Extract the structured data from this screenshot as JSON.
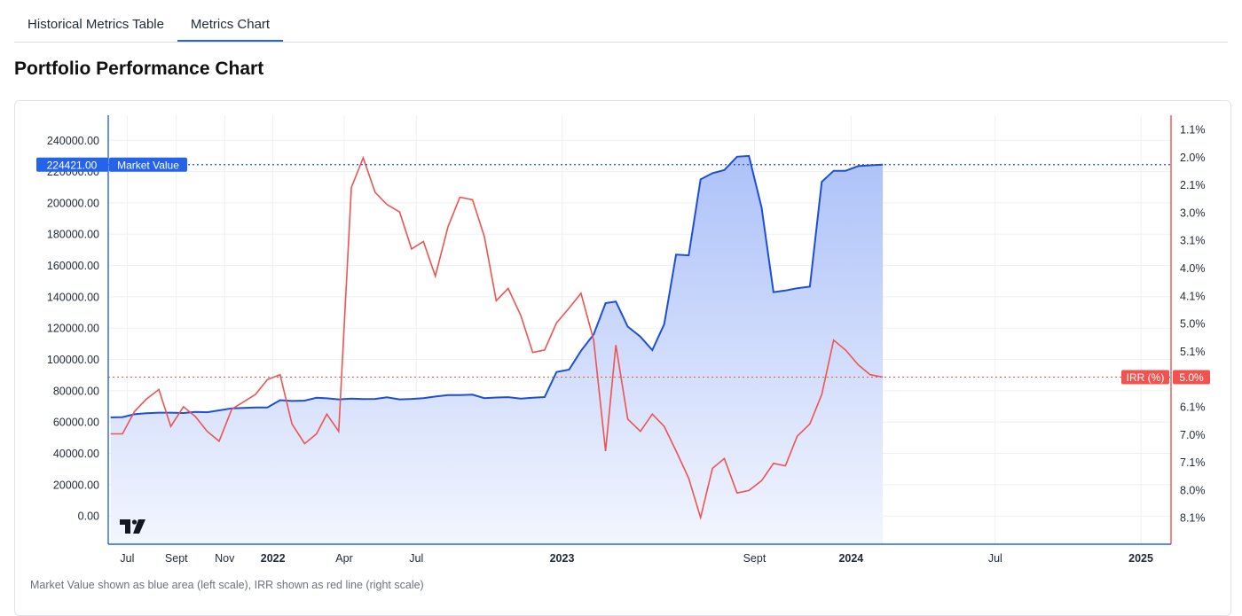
{
  "tabs": [
    {
      "label": "Historical Metrics Table",
      "active": false
    },
    {
      "label": "Metrics Chart",
      "active": true
    }
  ],
  "page_title": "Portfolio Performance Chart",
  "caption": "Market Value shown as blue area (left scale), IRR shown as red line (right scale)",
  "colors": {
    "market_value": "#1d4ed8",
    "irr": "#ef5350",
    "area_top": "#a9bff8",
    "area_bottom": "#f3f6fe",
    "grid": "#eef0f3",
    "left_axis": "#2563eb",
    "right_axis": "#ef5350"
  },
  "chart_data": {
    "type": "area",
    "x_tick_labels": [
      {
        "label": "Jul",
        "date": "2021-07-01",
        "bold": false
      },
      {
        "label": "Sept",
        "date": "2021-09-01",
        "bold": false
      },
      {
        "label": "Nov",
        "date": "2021-11-01",
        "bold": false
      },
      {
        "label": "2022",
        "date": "2022-01-01",
        "bold": true
      },
      {
        "label": "Apr",
        "date": "2022-04-01",
        "bold": false
      },
      {
        "label": "Jul",
        "date": "2022-07-01",
        "bold": false
      },
      {
        "label": "2023",
        "date": "2023-01-01",
        "bold": true
      },
      {
        "label": "Sept",
        "date": "2023-09-01",
        "bold": false
      },
      {
        "label": "2024",
        "date": "2024-01-01",
        "bold": true
      },
      {
        "label": "Jul",
        "date": "2024-07-01",
        "bold": false
      },
      {
        "label": "2025",
        "date": "2025-01-01",
        "bold": true
      }
    ],
    "x_range": [
      "2021-06-07",
      "2025-02-08"
    ],
    "left_axis": {
      "ticks": [
        "0.00",
        "20000.00",
        "40000.00",
        "60000.00",
        "80000.00",
        "100000.00",
        "120000.00",
        "140000.00",
        "160000.00",
        "180000.00",
        "200000.00",
        "220000.00",
        "240000.00"
      ],
      "range": [
        -18000,
        256000
      ]
    },
    "right_axis": {
      "ticks": [
        "1.1%",
        "2.0%",
        "2.1%",
        "3.0%",
        "3.1%",
        "4.0%",
        "4.1%",
        "5.0%",
        "5.1%",
        "6.0%",
        "6.1%",
        "7.0%",
        "7.1%",
        "8.0%",
        "8.1%"
      ]
    },
    "grid": true,
    "series": [
      {
        "name": "Market Value",
        "axis": "left",
        "style": "area",
        "last_value_label": "224421.00",
        "points": [
          [
            "2021-06-10",
            63000
          ],
          [
            "2021-06-25",
            63200
          ],
          [
            "2021-07-10",
            65000
          ],
          [
            "2021-07-25",
            65700
          ],
          [
            "2021-08-10",
            66000
          ],
          [
            "2021-08-25",
            66000
          ],
          [
            "2021-09-10",
            65800
          ],
          [
            "2021-09-25",
            66500
          ],
          [
            "2021-10-10",
            66300
          ],
          [
            "2021-10-25",
            67500
          ],
          [
            "2021-11-10",
            68800
          ],
          [
            "2021-11-25",
            69000
          ],
          [
            "2021-12-10",
            69300
          ],
          [
            "2021-12-25",
            69300
          ],
          [
            "2022-01-10",
            74000
          ],
          [
            "2022-01-25",
            73500
          ],
          [
            "2022-02-10",
            73700
          ],
          [
            "2022-02-25",
            75500
          ],
          [
            "2022-03-10",
            75200
          ],
          [
            "2022-03-25",
            74500
          ],
          [
            "2022-04-10",
            75000
          ],
          [
            "2022-04-25",
            74700
          ],
          [
            "2022-05-10",
            74800
          ],
          [
            "2022-05-25",
            75800
          ],
          [
            "2022-06-10",
            74500
          ],
          [
            "2022-06-25",
            74800
          ],
          [
            "2022-07-10",
            75300
          ],
          [
            "2022-07-25",
            76300
          ],
          [
            "2022-08-10",
            77200
          ],
          [
            "2022-08-25",
            77300
          ],
          [
            "2022-09-10",
            77500
          ],
          [
            "2022-09-25",
            75300
          ],
          [
            "2022-10-10",
            75700
          ],
          [
            "2022-10-25",
            75900
          ],
          [
            "2022-11-10",
            75000
          ],
          [
            "2022-11-25",
            75500
          ],
          [
            "2022-12-10",
            76000
          ],
          [
            "2022-12-25",
            92000
          ],
          [
            "2023-01-10",
            93500
          ],
          [
            "2023-01-25",
            105500
          ],
          [
            "2023-02-10",
            116000
          ],
          [
            "2023-02-25",
            136000
          ],
          [
            "2023-03-10",
            137000
          ],
          [
            "2023-03-25",
            121000
          ],
          [
            "2023-04-10",
            114500
          ],
          [
            "2023-04-25",
            106000
          ],
          [
            "2023-05-10",
            122500
          ],
          [
            "2023-05-25",
            167000
          ],
          [
            "2023-06-10",
            166500
          ],
          [
            "2023-06-25",
            215000
          ],
          [
            "2023-07-10",
            219000
          ],
          [
            "2023-07-25",
            221000
          ],
          [
            "2023-08-10",
            229500
          ],
          [
            "2023-08-25",
            230000
          ],
          [
            "2023-09-10",
            197000
          ],
          [
            "2023-09-25",
            143000
          ],
          [
            "2023-10-10",
            144000
          ],
          [
            "2023-10-25",
            145500
          ],
          [
            "2023-11-10",
            146500
          ],
          [
            "2023-11-25",
            213500
          ],
          [
            "2023-12-10",
            220500
          ],
          [
            "2023-12-25",
            220500
          ],
          [
            "2024-01-10",
            223500
          ],
          [
            "2024-01-25",
            224000
          ],
          [
            "2024-02-10",
            224421
          ]
        ]
      },
      {
        "name": "IRR (%)",
        "axis": "right",
        "style": "line",
        "last_value_label": "5.0%",
        "points": [
          [
            "2021-06-10",
            100
          ],
          [
            "2021-06-25",
            100
          ],
          [
            "2021-07-10",
            109
          ],
          [
            "2021-07-25",
            114
          ],
          [
            "2021-08-10",
            118
          ],
          [
            "2021-08-25",
            103
          ],
          [
            "2021-09-10",
            111
          ],
          [
            "2021-09-25",
            107
          ],
          [
            "2021-10-10",
            101
          ],
          [
            "2021-10-25",
            97
          ],
          [
            "2021-11-10",
            110
          ],
          [
            "2021-11-25",
            113
          ],
          [
            "2021-12-10",
            116
          ],
          [
            "2021-12-25",
            122
          ],
          [
            "2022-01-10",
            124
          ],
          [
            "2022-01-25",
            104
          ],
          [
            "2022-02-10",
            96
          ],
          [
            "2022-02-25",
            100
          ],
          [
            "2022-03-10",
            108
          ],
          [
            "2022-03-25",
            101
          ],
          [
            "2022-04-10",
            200
          ],
          [
            "2022-04-25",
            212
          ],
          [
            "2022-05-10",
            198
          ],
          [
            "2022-05-25",
            193
          ],
          [
            "2022-06-10",
            190
          ],
          [
            "2022-06-25",
            175
          ],
          [
            "2022-07-10",
            178
          ],
          [
            "2022-07-25",
            164
          ],
          [
            "2022-08-10",
            184
          ],
          [
            "2022-08-25",
            196
          ],
          [
            "2022-09-10",
            195
          ],
          [
            "2022-09-25",
            180
          ],
          [
            "2022-10-10",
            154
          ],
          [
            "2022-10-25",
            159
          ],
          [
            "2022-11-10",
            148
          ],
          [
            "2022-11-25",
            133
          ],
          [
            "2022-12-10",
            134
          ],
          [
            "2022-12-25",
            145
          ],
          [
            "2023-01-10",
            151
          ],
          [
            "2023-01-25",
            157
          ],
          [
            "2023-02-10",
            138
          ],
          [
            "2023-02-25",
            93
          ],
          [
            "2023-03-10",
            136
          ],
          [
            "2023-03-25",
            106
          ],
          [
            "2023-04-10",
            101
          ],
          [
            "2023-04-25",
            108
          ],
          [
            "2023-05-10",
            103
          ],
          [
            "2023-05-25",
            93
          ],
          [
            "2023-06-10",
            82
          ],
          [
            "2023-06-25",
            66
          ],
          [
            "2023-07-10",
            86
          ],
          [
            "2023-07-25",
            90
          ],
          [
            "2023-08-10",
            76
          ],
          [
            "2023-08-25",
            77
          ],
          [
            "2023-09-10",
            81
          ],
          [
            "2023-09-25",
            88
          ],
          [
            "2023-10-10",
            87
          ],
          [
            "2023-10-25",
            99
          ],
          [
            "2023-11-10",
            104
          ],
          [
            "2023-11-25",
            116
          ],
          [
            "2023-12-10",
            138
          ],
          [
            "2023-12-25",
            134
          ],
          [
            "2024-01-10",
            128
          ],
          [
            "2024-01-25",
            124
          ],
          [
            "2024-02-10",
            123
          ]
        ]
      }
    ]
  }
}
